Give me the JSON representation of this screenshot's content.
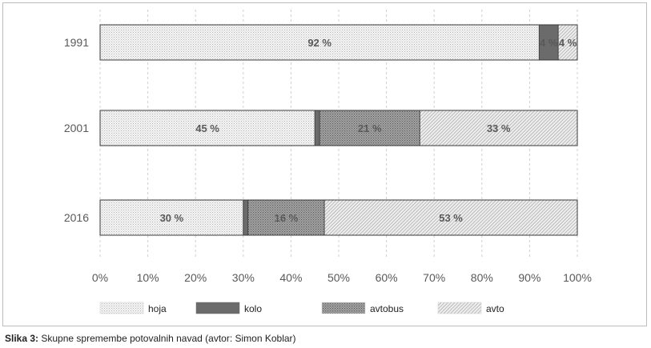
{
  "chart_data": {
    "type": "bar",
    "orientation": "horizontal",
    "stacked": true,
    "categories": [
      "1991",
      "2001",
      "2016"
    ],
    "series": [
      {
        "name": "hoja",
        "values": [
          92,
          45,
          30
        ],
        "labels": [
          "92 %",
          "45 %",
          "30 %"
        ],
        "pattern": "light-dots"
      },
      {
        "name": "kolo",
        "values": [
          4,
          1,
          1
        ],
        "labels": [
          "4 %",
          "",
          ""
        ],
        "pattern": "solid-dark"
      },
      {
        "name": "avtobus",
        "values": [
          0,
          21,
          16
        ],
        "labels": [
          "",
          "21 %",
          "16 %"
        ],
        "pattern": "dark-dots"
      },
      {
        "name": "avto",
        "values": [
          4,
          33,
          53
        ],
        "labels": [
          "4 %",
          "33 %",
          "53 %"
        ],
        "pattern": "diagonal-hatch"
      }
    ],
    "xlim": [
      0,
      100
    ],
    "xticks": [
      "0%",
      "10%",
      "20%",
      "30%",
      "40%",
      "50%",
      "60%",
      "70%",
      "80%",
      "90%",
      "100%"
    ],
    "grid": "vertical-dashed",
    "legend_position": "bottom",
    "colors": {
      "kolo": "#6b6b6b",
      "border": "#3a3a3a",
      "grid": "#d0d0d0",
      "axis_text": "#595959",
      "label_text": "#595959"
    }
  },
  "caption": {
    "label": "Slika 3:",
    "text": " Skupne spremembe potovalnih navad (avtor: Simon Koblar)"
  }
}
